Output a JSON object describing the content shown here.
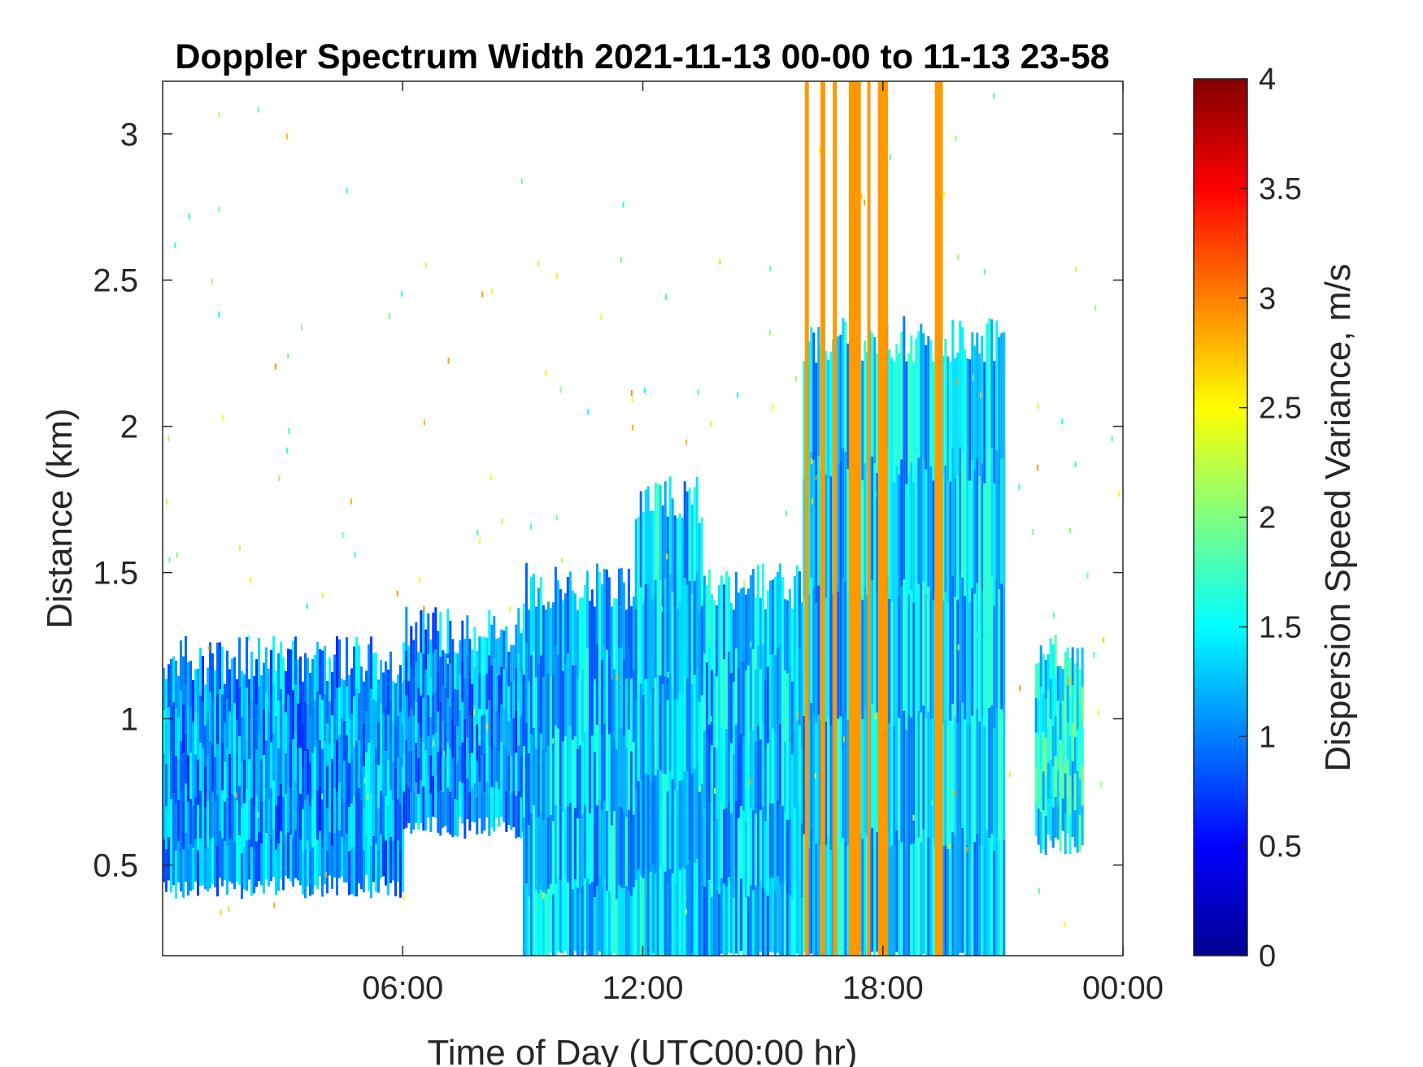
{
  "chart_data": {
    "type": "heatmap",
    "title": "Doppler Spectrum Width 2021-11-13 00-00 to 11-13 23-58",
    "xlabel": "Time of Day (UTC00:00 hr)",
    "ylabel": "Distance (km)",
    "x_ticks": [
      {
        "value": 6,
        "label": "06:00"
      },
      {
        "value": 12,
        "label": "12:00"
      },
      {
        "value": 18,
        "label": "18:00"
      },
      {
        "value": 24,
        "label": "00:00"
      }
    ],
    "y_ticks": [
      {
        "value": 0.5,
        "label": "0.5"
      },
      {
        "value": 1.0,
        "label": "1"
      },
      {
        "value": 1.5,
        "label": "1.5"
      },
      {
        "value": 2.0,
        "label": "2"
      },
      {
        "value": 2.5,
        "label": "2.5"
      },
      {
        "value": 3.0,
        "label": "3"
      }
    ],
    "xlim": [
      0,
      24
    ],
    "ylim": [
      0.19,
      3.18
    ],
    "colorbar": {
      "label": "Dispersion Speed Variance, m/s",
      "range": [
        0,
        4
      ],
      "ticks": [
        {
          "value": 0,
          "label": "0"
        },
        {
          "value": 0.5,
          "label": "0.5"
        },
        {
          "value": 1,
          "label": "1"
        },
        {
          "value": 1.5,
          "label": "1.5"
        },
        {
          "value": 2,
          "label": "2"
        },
        {
          "value": 2.5,
          "label": "2.5"
        },
        {
          "value": 3,
          "label": "3"
        },
        {
          "value": 3.5,
          "label": "3.5"
        },
        {
          "value": 4,
          "label": "4"
        }
      ],
      "colormap": "jet",
      "colormap_stops": [
        "#00008f",
        "#0000ff",
        "#00ffff",
        "#ffff00",
        "#ff0000",
        "#800000"
      ]
    },
    "grid": false,
    "data_regions": [
      {
        "name": "boundary layer early",
        "t_start": 0,
        "t_end": 6,
        "h_low": 0.45,
        "h_high": 1.2,
        "value": 1.1
      },
      {
        "name": "boundary layer growth",
        "t_start": 6,
        "t_end": 9,
        "h_low": 0.65,
        "h_high": 1.3,
        "value": 1.1
      },
      {
        "name": "daytime mixed layer",
        "t_start": 9,
        "t_end": 16,
        "h_low": 0.19,
        "h_high": 1.45,
        "value": 1.25
      },
      {
        "name": "mixed layer peak",
        "t_start": 11.8,
        "t_end": 13.5,
        "h_low": 0.19,
        "h_high": 1.75,
        "value": 1.3
      },
      {
        "name": "afternoon turbulence",
        "t_start": 16,
        "t_end": 21,
        "h_low": 0.19,
        "h_high": 2.3,
        "value": 1.3
      },
      {
        "name": "late evening patch",
        "t_start": 21.8,
        "t_end": 23,
        "h_low": 0.6,
        "h_high": 1.25,
        "value": 1.5
      }
    ],
    "high_value_streaks": [
      {
        "t": 16.1,
        "width_h": 0.1,
        "value": 2.9
      },
      {
        "t": 16.5,
        "width_h": 0.12,
        "value": 2.9
      },
      {
        "t": 16.8,
        "width_h": 0.1,
        "value": 2.9
      },
      {
        "t": 17.3,
        "width_h": 0.3,
        "value": 2.9
      },
      {
        "t": 17.65,
        "width_h": 0.08,
        "value": 2.9
      },
      {
        "t": 18.0,
        "width_h": 0.25,
        "value": 2.9
      },
      {
        "t": 19.4,
        "width_h": 0.2,
        "value": 2.9
      }
    ]
  }
}
